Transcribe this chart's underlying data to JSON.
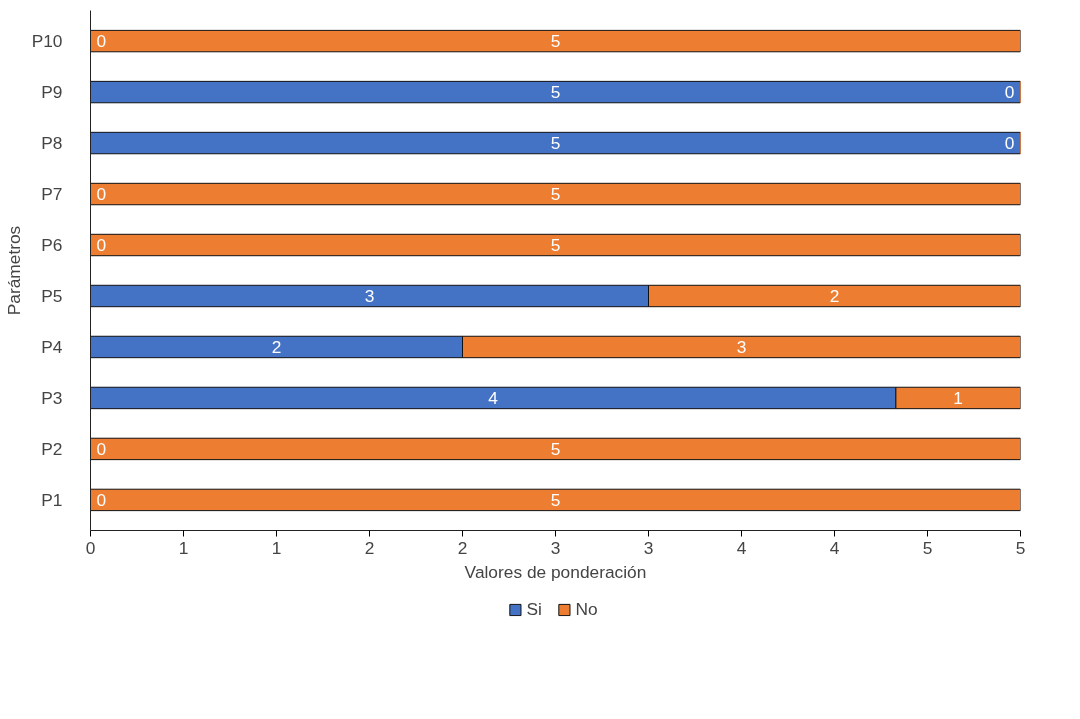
{
  "chart_data": {
    "type": "bar",
    "orientation": "horizontal",
    "stacked": true,
    "xlabel": "Valores de ponderación",
    "ylabel": "Parámetros",
    "categories": [
      "P10",
      "P9",
      "P8",
      "P7",
      "P6",
      "P5",
      "P4",
      "P3",
      "P2",
      "P1"
    ],
    "series": [
      {
        "name": "Si",
        "color": "#4472c4",
        "values": [
          0,
          5,
          5,
          0,
          0,
          3,
          2,
          4.33,
          0,
          0
        ],
        "value_labels": [
          "0",
          "5",
          "5",
          "0",
          "0",
          "3",
          "2",
          "4",
          "0",
          "0"
        ]
      },
      {
        "name": "No",
        "color": "#ed7d31",
        "values": [
          5,
          0,
          0,
          5,
          5,
          2,
          3,
          0.67,
          5,
          5
        ],
        "value_labels": [
          "5",
          "0",
          "0",
          "5",
          "5",
          "2",
          "3",
          "1",
          "5",
          "5"
        ]
      }
    ],
    "xlim": [
      0,
      5
    ],
    "xticks": [
      0,
      {
        "value": 0.5,
        "label": "1"
      },
      1,
      {
        "value": 1.5,
        "label": "2"
      },
      2,
      {
        "value": 2.5,
        "label": "3"
      },
      3,
      {
        "value": 3.5,
        "label": "4"
      },
      4,
      {
        "value": 4.5,
        "label": "5"
      },
      5
    ],
    "grid": false,
    "legend": "bottom"
  }
}
